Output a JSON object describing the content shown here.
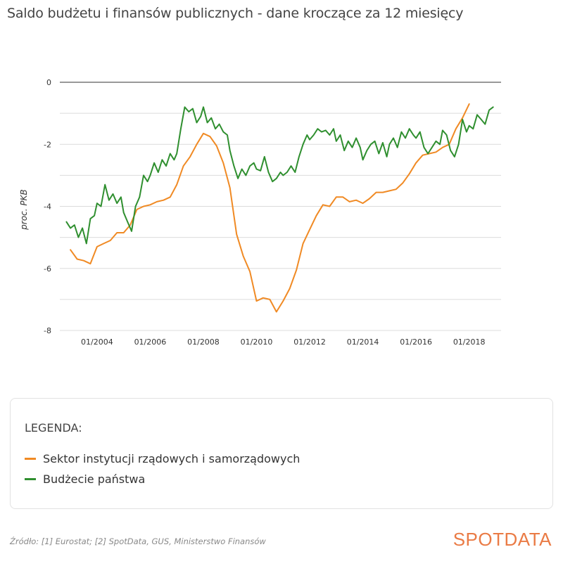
{
  "header": {
    "title": "Saldo budżetu i finansów publicznych - dane kroczące za 12 miesięcy"
  },
  "chart_data": {
    "type": "line",
    "ylabel": "proc. PKB",
    "ylim": [
      -8,
      0
    ],
    "yticks": [
      0,
      -2,
      -4,
      -6,
      -8
    ],
    "xlim": [
      2002.6,
      2019.2
    ],
    "xticks": [
      {
        "x": 2004.0,
        "label": "01/2004"
      },
      {
        "x": 2006.0,
        "label": "01/2006"
      },
      {
        "x": 2008.0,
        "label": "01/2008"
      },
      {
        "x": 2010.0,
        "label": "01/2010"
      },
      {
        "x": 2012.0,
        "label": "01/2012"
      },
      {
        "x": 2014.0,
        "label": "01/2014"
      },
      {
        "x": 2016.0,
        "label": "01/2016"
      },
      {
        "x": 2018.0,
        "label": "01/2018"
      }
    ],
    "grid": true,
    "series": [
      {
        "name": "Sektor instytucji rządowych i samorządowych",
        "color": "#f08a24",
        "x": [
          2003.0,
          2003.25,
          2003.5,
          2003.75,
          2004.0,
          2004.25,
          2004.5,
          2004.75,
          2005.0,
          2005.25,
          2005.5,
          2005.75,
          2006.0,
          2006.25,
          2006.5,
          2006.75,
          2007.0,
          2007.25,
          2007.5,
          2007.75,
          2008.0,
          2008.25,
          2008.5,
          2008.75,
          2009.0,
          2009.25,
          2009.5,
          2009.75,
          2010.0,
          2010.25,
          2010.5,
          2010.75,
          2011.0,
          2011.25,
          2011.5,
          2011.75,
          2012.0,
          2012.25,
          2012.5,
          2012.75,
          2013.0,
          2013.25,
          2013.5,
          2013.75,
          2014.0,
          2014.25,
          2014.5,
          2014.75,
          2015.0,
          2015.25,
          2015.5,
          2015.75,
          2016.0,
          2016.25,
          2016.5,
          2016.75,
          2017.0,
          2017.25,
          2017.5,
          2017.75,
          2018.0
        ],
        "values": [
          -5.4,
          -5.7,
          -5.75,
          -5.85,
          -5.3,
          -5.2,
          -5.1,
          -4.85,
          -4.85,
          -4.6,
          -4.1,
          -4.0,
          -3.95,
          -3.85,
          -3.8,
          -3.7,
          -3.3,
          -2.7,
          -2.4,
          -2.0,
          -1.65,
          -1.75,
          -2.05,
          -2.6,
          -3.4,
          -4.9,
          -5.6,
          -6.1,
          -7.05,
          -6.95,
          -7.0,
          -7.4,
          -7.05,
          -6.65,
          -6.05,
          -5.2,
          -4.75,
          -4.3,
          -3.95,
          -4.0,
          -3.7,
          -3.7,
          -3.85,
          -3.8,
          -3.9,
          -3.75,
          -3.55,
          -3.55,
          -3.5,
          -3.45,
          -3.25,
          -2.95,
          -2.6,
          -2.35,
          -2.3,
          -2.25,
          -2.1,
          -2.0,
          -1.5,
          -1.15,
          -0.7
        ]
      },
      {
        "name": "Budżecie państwa",
        "color": "#2f8f2f",
        "x": [
          2002.85,
          2003.0,
          2003.15,
          2003.3,
          2003.45,
          2003.6,
          2003.75,
          2003.9,
          2004.0,
          2004.15,
          2004.3,
          2004.45,
          2004.6,
          2004.75,
          2004.9,
          2005.0,
          2005.15,
          2005.3,
          2005.45,
          2005.6,
          2005.75,
          2005.9,
          2006.0,
          2006.15,
          2006.3,
          2006.45,
          2006.6,
          2006.75,
          2006.9,
          2007.0,
          2007.15,
          2007.3,
          2007.45,
          2007.6,
          2007.75,
          2007.9,
          2008.0,
          2008.15,
          2008.3,
          2008.45,
          2008.6,
          2008.75,
          2008.9,
          2009.0,
          2009.15,
          2009.3,
          2009.45,
          2009.6,
          2009.75,
          2009.9,
          2010.0,
          2010.15,
          2010.3,
          2010.45,
          2010.6,
          2010.75,
          2010.9,
          2011.0,
          2011.15,
          2011.3,
          2011.45,
          2011.6,
          2011.75,
          2011.9,
          2012.0,
          2012.15,
          2012.3,
          2012.45,
          2012.6,
          2012.75,
          2012.9,
          2013.0,
          2013.15,
          2013.3,
          2013.45,
          2013.6,
          2013.75,
          2013.9,
          2014.0,
          2014.15,
          2014.3,
          2014.45,
          2014.6,
          2014.75,
          2014.9,
          2015.0,
          2015.15,
          2015.3,
          2015.45,
          2015.6,
          2015.75,
          2015.9,
          2016.0,
          2016.15,
          2016.3,
          2016.45,
          2016.6,
          2016.75,
          2016.9,
          2017.0,
          2017.15,
          2017.3,
          2017.45,
          2017.6,
          2017.75,
          2017.9,
          2018.0,
          2018.15,
          2018.3,
          2018.45,
          2018.6,
          2018.75,
          2018.9
        ],
        "values": [
          -4.5,
          -4.7,
          -4.6,
          -5.0,
          -4.7,
          -5.2,
          -4.4,
          -4.3,
          -3.9,
          -4.0,
          -3.3,
          -3.8,
          -3.6,
          -3.9,
          -3.7,
          -4.2,
          -4.5,
          -4.8,
          -4.0,
          -3.7,
          -3.0,
          -3.2,
          -3.0,
          -2.6,
          -2.9,
          -2.5,
          -2.7,
          -2.3,
          -2.5,
          -2.3,
          -1.5,
          -0.8,
          -0.95,
          -0.85,
          -1.3,
          -1.1,
          -0.8,
          -1.3,
          -1.15,
          -1.5,
          -1.35,
          -1.6,
          -1.7,
          -2.2,
          -2.7,
          -3.1,
          -2.8,
          -3.0,
          -2.7,
          -2.6,
          -2.8,
          -2.85,
          -2.4,
          -2.9,
          -3.2,
          -3.1,
          -2.9,
          -3.0,
          -2.9,
          -2.7,
          -2.9,
          -2.4,
          -2.0,
          -1.7,
          -1.85,
          -1.7,
          -1.5,
          -1.6,
          -1.55,
          -1.7,
          -1.5,
          -1.9,
          -1.7,
          -2.2,
          -1.9,
          -2.1,
          -1.8,
          -2.1,
          -2.5,
          -2.2,
          -2.0,
          -1.9,
          -2.3,
          -1.95,
          -2.4,
          -2.0,
          -1.8,
          -2.1,
          -1.6,
          -1.8,
          -1.5,
          -1.7,
          -1.8,
          -1.6,
          -2.1,
          -2.3,
          -2.1,
          -1.9,
          -2.0,
          -1.55,
          -1.7,
          -2.2,
          -2.4,
          -2.0,
          -1.2,
          -1.6,
          -1.4,
          -1.5,
          -1.05,
          -1.2,
          -1.35,
          -0.9,
          -0.8
        ]
      }
    ]
  },
  "legend": {
    "title": "LEGENDA:",
    "items": [
      {
        "label": "Sektor instytucji rządowych i samorządowych",
        "color": "#f08a24"
      },
      {
        "label": "Budżecie państwa",
        "color": "#2f8f2f"
      }
    ]
  },
  "footer": {
    "source": "Źródło: [1] Eurostat; [2] SpotData, GUS, Ministerstwo Finansów",
    "logo": "SPOTDATA"
  }
}
